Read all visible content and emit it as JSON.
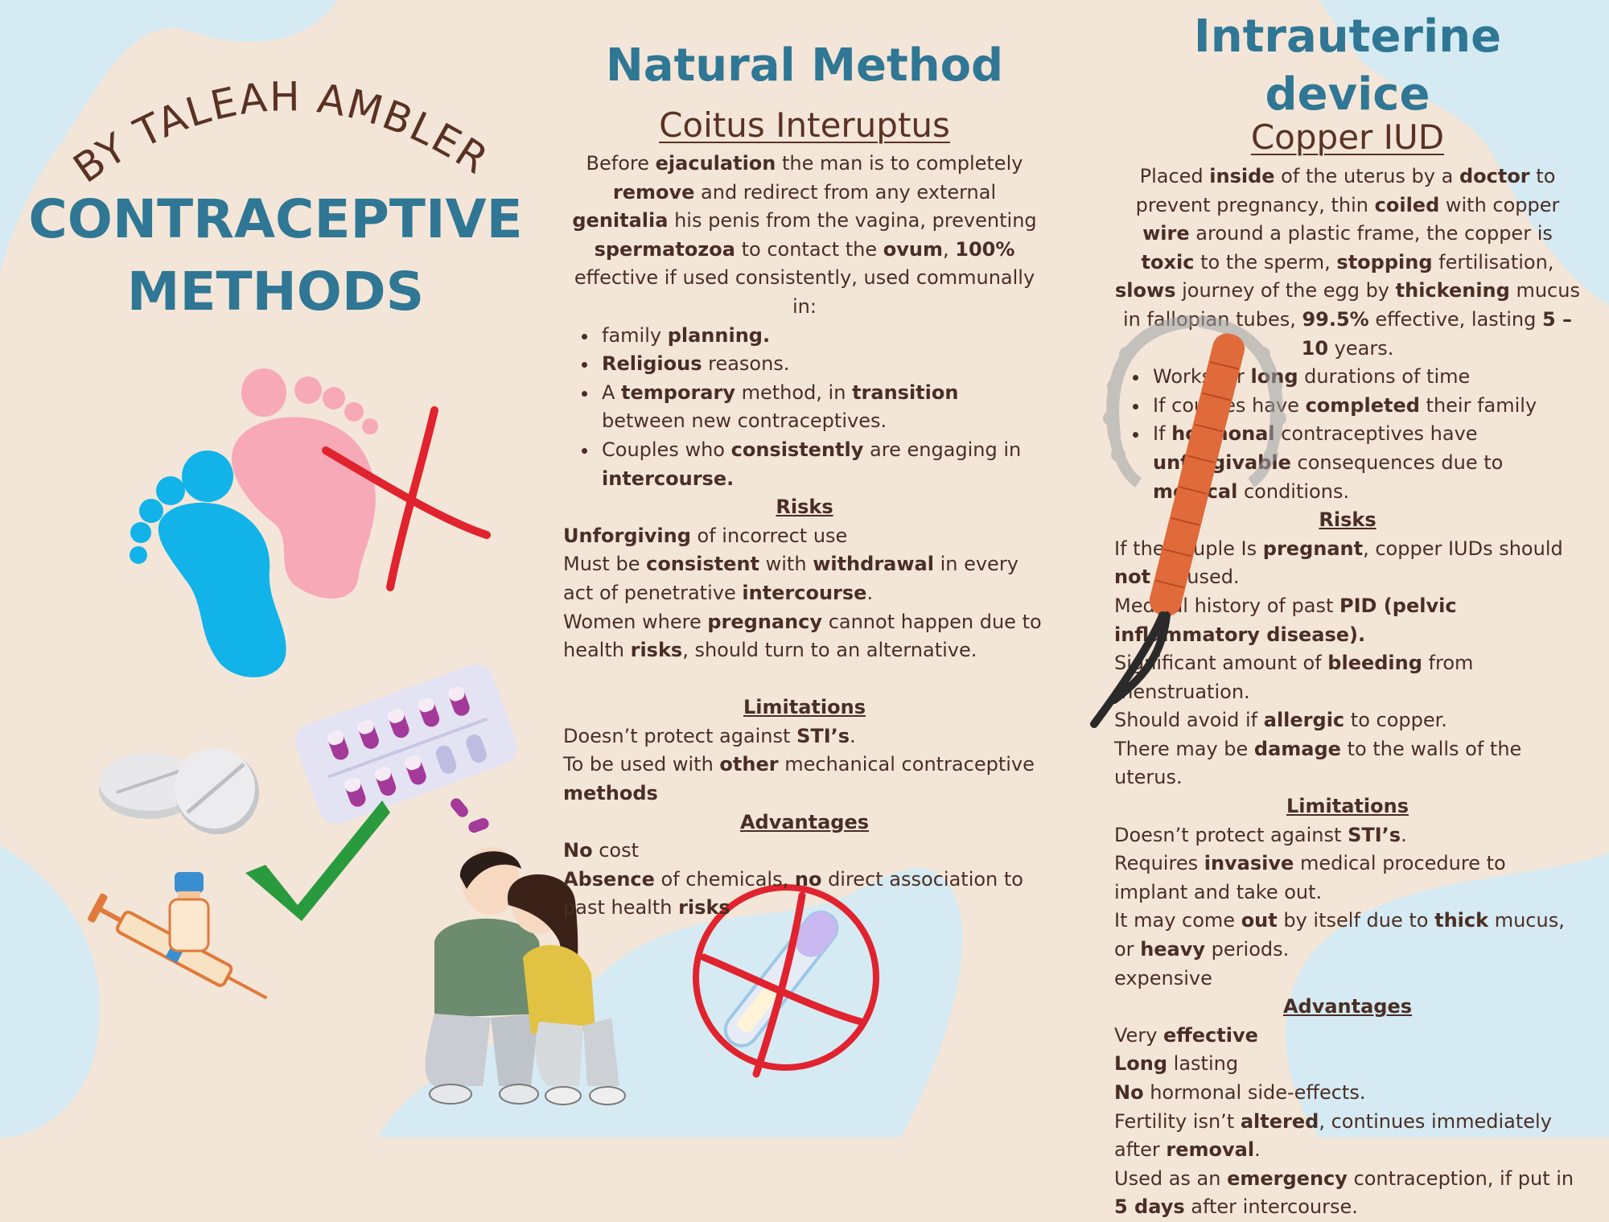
{
  "left": {
    "byline": "BY TALEAH AMBLER",
    "title_line1": "CONTRACEPTIVE",
    "title_line2": "METHODS"
  },
  "natural": {
    "heading": "Natural Method",
    "subheading": "Coitus Interuptus",
    "intro": [
      [
        "Before ",
        ""
      ],
      [
        "ejaculation",
        "b"
      ],
      [
        " the man is to completely ",
        ""
      ],
      [
        "remove",
        "b"
      ],
      [
        " and redirect from any external ",
        ""
      ],
      [
        "genitalia",
        "b"
      ],
      [
        " his penis from the vagina, preventing ",
        ""
      ],
      [
        "spermatozoa",
        "b"
      ],
      [
        " to contact the ",
        ""
      ],
      [
        "ovum",
        "b"
      ],
      [
        ", ",
        ""
      ],
      [
        "100%",
        "b"
      ],
      [
        " effective if used consistently, used communally in:",
        ""
      ]
    ],
    "uses": [
      [
        [
          "family ",
          ""
        ],
        [
          "planning.",
          "b"
        ]
      ],
      [
        [
          "Religious",
          "b"
        ],
        [
          " reasons.",
          ""
        ]
      ],
      [
        [
          "A ",
          ""
        ],
        [
          "temporary",
          "b"
        ],
        [
          " method, in ",
          ""
        ],
        [
          "transition",
          "b"
        ],
        [
          " between new contraceptives.",
          ""
        ]
      ],
      [
        [
          "Couples who ",
          ""
        ],
        [
          "consistently",
          "b"
        ],
        [
          " are engaging in ",
          ""
        ],
        [
          "intercourse.",
          "b"
        ]
      ]
    ],
    "risks_heading": "Risks",
    "risks": [
      [
        [
          "Unforgiving",
          "b"
        ],
        [
          " of incorrect use",
          ""
        ]
      ],
      [
        [
          "Must be ",
          ""
        ],
        [
          "consistent",
          "b"
        ],
        [
          " with ",
          ""
        ],
        [
          "withdrawal",
          "b"
        ],
        [
          " in every act of penetrative ",
          ""
        ],
        [
          "intercourse",
          "b"
        ],
        [
          ".",
          ""
        ]
      ],
      [
        [
          "Women where ",
          ""
        ],
        [
          "pregnancy",
          "b"
        ],
        [
          " cannot happen due to health ",
          ""
        ],
        [
          "risks",
          "b"
        ],
        [
          ", should turn to an alternative.",
          ""
        ]
      ]
    ],
    "limitations_heading": "Limitations",
    "limitations": [
      [
        [
          "Doesn’t protect against ",
          ""
        ],
        [
          "STI’s",
          "b"
        ],
        [
          ".",
          ""
        ]
      ],
      [
        [
          "To be used with ",
          ""
        ],
        [
          "other",
          "b"
        ],
        [
          " mechanical contraceptive ",
          ""
        ],
        [
          "methods",
          "b"
        ]
      ]
    ],
    "advantages_heading": "Advantages",
    "advantages": [
      [
        [
          "No",
          "b"
        ],
        [
          " cost",
          ""
        ]
      ],
      [
        [
          "Absence",
          "b"
        ],
        [
          " of chemicals, ",
          ""
        ],
        [
          "no",
          "b"
        ],
        [
          " direct association to past health ",
          ""
        ],
        [
          "risks",
          "b"
        ]
      ]
    ]
  },
  "iud": {
    "heading": "Intrauterine device",
    "subheading": "Copper IUD",
    "intro": [
      [
        "Placed ",
        ""
      ],
      [
        "inside",
        "b"
      ],
      [
        " of the uterus by a ",
        ""
      ],
      [
        "doctor",
        "b"
      ],
      [
        " to prevent pregnancy, thin ",
        ""
      ],
      [
        "coiled",
        "b"
      ],
      [
        " with copper ",
        ""
      ],
      [
        "wire",
        "b"
      ],
      [
        " around a plastic frame, the copper is ",
        ""
      ],
      [
        "toxic",
        "b"
      ],
      [
        " to the sperm, ",
        ""
      ],
      [
        "stopping",
        "b"
      ],
      [
        " fertilisation, ",
        ""
      ],
      [
        "slows",
        "b"
      ],
      [
        " journey of the egg by ",
        ""
      ],
      [
        "thickening",
        "b"
      ],
      [
        " mucus in fallopian tubes, ",
        ""
      ],
      [
        "99.5%",
        "b"
      ],
      [
        " effective, lasting ",
        ""
      ],
      [
        "5 – 10",
        "b"
      ],
      [
        " years.",
        ""
      ]
    ],
    "uses": [
      [
        [
          "Works for ",
          ""
        ],
        [
          "long",
          "b"
        ],
        [
          " durations of time",
          ""
        ]
      ],
      [
        [
          "If couples have ",
          ""
        ],
        [
          "completed",
          "b"
        ],
        [
          " their family",
          ""
        ]
      ],
      [
        [
          "If ",
          ""
        ],
        [
          "hormonal",
          "b"
        ],
        [
          " contraceptives have ",
          ""
        ],
        [
          "unforgivable",
          "b"
        ],
        [
          " consequences due to ",
          ""
        ],
        [
          "medical",
          "b"
        ],
        [
          " conditions.",
          ""
        ]
      ]
    ],
    "risks_heading": "Risks",
    "risks": [
      [
        [
          "If the couple Is ",
          ""
        ],
        [
          "pregnant",
          "b"
        ],
        [
          ", copper IUDs should ",
          ""
        ],
        [
          "not",
          "b"
        ],
        [
          " be used.",
          ""
        ]
      ],
      [
        [
          "Medical history of past ",
          ""
        ],
        [
          "PID (pelvic inflammatory disease).",
          "b"
        ]
      ],
      [
        [
          "Significant amount of ",
          ""
        ],
        [
          "bleeding",
          "b"
        ],
        [
          " from menstruation.",
          ""
        ]
      ],
      [
        [
          "Should avoid if ",
          ""
        ],
        [
          "allergic",
          "b"
        ],
        [
          " to copper.",
          ""
        ]
      ],
      [
        [
          "There may be ",
          ""
        ],
        [
          "damage",
          "b"
        ],
        [
          " to the walls of the uterus.",
          ""
        ]
      ]
    ],
    "limitations_heading": "Limitations",
    "limitations": [
      [
        [
          "Doesn’t protect against ",
          ""
        ],
        [
          "STI’s",
          "b"
        ],
        [
          ".",
          ""
        ]
      ],
      [
        [
          "Requires ",
          ""
        ],
        [
          "invasive",
          "b"
        ],
        [
          " medical procedure to implant and take out.",
          ""
        ]
      ],
      [
        [
          "It may come ",
          ""
        ],
        [
          "out",
          "b"
        ],
        [
          " by itself due to ",
          ""
        ],
        [
          "thick",
          "b"
        ],
        [
          " mucus, or ",
          ""
        ],
        [
          "heavy",
          "b"
        ],
        [
          " periods.",
          ""
        ]
      ],
      [
        [
          "expensive",
          ""
        ]
      ]
    ],
    "advantages_heading": "Advantages",
    "advantages": [
      [
        [
          "Very ",
          ""
        ],
        [
          "effective",
          "b"
        ]
      ],
      [
        [
          "Long",
          "b"
        ],
        [
          " lasting",
          ""
        ]
      ],
      [
        [
          "No",
          "b"
        ],
        [
          " hormonal side-effects.",
          ""
        ]
      ],
      [
        [
          "Fertility isn’t ",
          ""
        ],
        [
          "altered",
          "b"
        ],
        [
          ", continues immediately after ",
          ""
        ],
        [
          "removal",
          "b"
        ],
        [
          ".",
          ""
        ]
      ],
      [
        [
          "Used as an ",
          ""
        ],
        [
          "emergency",
          "b"
        ],
        [
          " contraception, if put in ",
          ""
        ],
        [
          "5 days",
          "b"
        ],
        [
          " after intercourse.",
          ""
        ]
      ]
    ]
  },
  "colors": {
    "background": "#f3e6d8",
    "blob": "#d5eaf2",
    "heading": "#2f7794",
    "text": "#4a2e25",
    "red_cross": "#e0232e",
    "green_check": "#2a9a3e",
    "copper": "#e06a3a"
  },
  "icons": [
    "baby-feet-icon",
    "red-cross-icon",
    "pill-blister-icon",
    "tablets-icon",
    "green-check-icon",
    "syringe-icon",
    "vial-icon",
    "couple-illustration",
    "no-pregnancy-test-icon",
    "copper-iud-icon"
  ]
}
